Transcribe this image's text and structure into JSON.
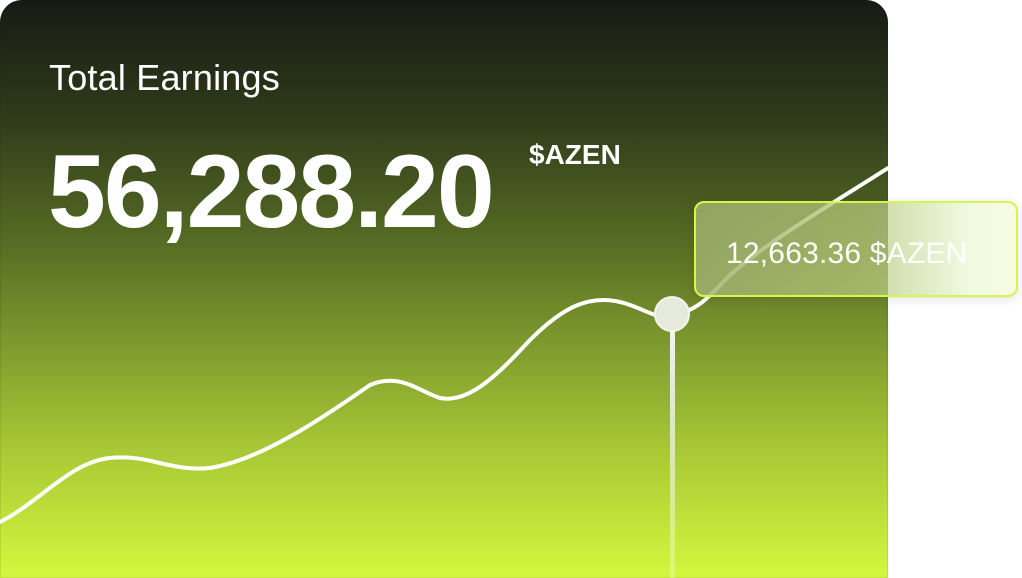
{
  "card": {
    "title": "Total Earnings",
    "amount": "56,288.20",
    "currency": "$AZEN"
  },
  "tooltip": {
    "value": "12,663.36 $AZEN"
  },
  "colors": {
    "gradient_top": "#171a14",
    "gradient_bottom": "#d4f73e",
    "line": "#ffffff",
    "tooltip_border": "#d7f54a"
  }
}
